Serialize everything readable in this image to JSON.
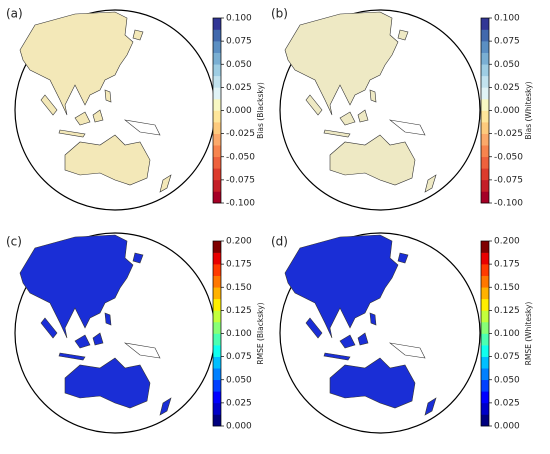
{
  "panels": [
    {
      "label": "(a)",
      "colorbar": {
        "label": "Bias (Blacksky)",
        "lim": [
          -0.1,
          0.1
        ],
        "ticks": [
          {
            "value": -0.1,
            "label": "-0.100"
          },
          {
            "value": -0.075,
            "label": "-0.075"
          },
          {
            "value": -0.05,
            "label": "-0.050"
          },
          {
            "value": -0.025,
            "label": "-0.025"
          },
          {
            "value": 0,
            "label": "0.000"
          },
          {
            "value": 0.025,
            "label": "0.025"
          },
          {
            "value": 0.05,
            "label": "0.050"
          },
          {
            "value": 0.075,
            "label": "0.075"
          },
          {
            "value": 0.1,
            "label": "0.100"
          }
        ],
        "colors": [
          "#a50026",
          "#c41e27",
          "#dc3b2c",
          "#ee613d",
          "#f7844e",
          "#fba96a",
          "#fdca7d",
          "#fee69a",
          "#f8f8c3",
          "#e0f3f6",
          "#c2e3ef",
          "#9ecde3",
          "#7aafd3",
          "#5b8fc3",
          "#4169ad",
          "#313695"
        ]
      },
      "land_color": "#f3e8b8"
    },
    {
      "label": "(b)",
      "colorbar": {
        "label": "Bias (Whitesky)",
        "lim": [
          -0.1,
          0.1
        ],
        "ticks": [
          {
            "value": -0.1,
            "label": "-0.100"
          },
          {
            "value": -0.075,
            "label": "-0.075"
          },
          {
            "value": -0.05,
            "label": "-0.050"
          },
          {
            "value": -0.025,
            "label": "-0.025"
          },
          {
            "value": 0,
            "label": "0.000"
          },
          {
            "value": 0.025,
            "label": "0.025"
          },
          {
            "value": 0.05,
            "label": "0.050"
          },
          {
            "value": 0.075,
            "label": "0.075"
          },
          {
            "value": 0.1,
            "label": "0.100"
          }
        ],
        "colors": [
          "#a50026",
          "#c41e27",
          "#dc3b2c",
          "#ee613d",
          "#f7844e",
          "#fba96a",
          "#fdca7d",
          "#fee69a",
          "#f8f8c3",
          "#e0f3f6",
          "#c2e3ef",
          "#9ecde3",
          "#7aafd3",
          "#5b8fc3",
          "#4169ad",
          "#313695"
        ]
      },
      "land_color": "#eee9c4"
    },
    {
      "label": "(c)",
      "colorbar": {
        "label": "RMSE (Blacksky)",
        "lim": [
          0,
          0.2
        ],
        "ticks": [
          {
            "value": 0,
            "label": "0.000"
          },
          {
            "value": 0.025,
            "label": "0.025"
          },
          {
            "value": 0.05,
            "label": "0.050"
          },
          {
            "value": 0.075,
            "label": "0.075"
          },
          {
            "value": 0.1,
            "label": "0.100"
          },
          {
            "value": 0.125,
            "label": "0.125"
          },
          {
            "value": 0.15,
            "label": "0.150"
          },
          {
            "value": 0.175,
            "label": "0.175"
          },
          {
            "value": 0.2,
            "label": "0.200"
          }
        ],
        "colors": [
          "#00007f",
          "#0000c8",
          "#0000ff",
          "#0040ff",
          "#0080ff",
          "#00bfff",
          "#10ffef",
          "#4cffb2",
          "#87ff77",
          "#c3ff3b",
          "#ffef00",
          "#ffb200",
          "#ff7700",
          "#ff3b00",
          "#e80000",
          "#7f0000"
        ]
      },
      "land_color": "#1a2ed6"
    },
    {
      "label": "(d)",
      "colorbar": {
        "label": "RMSE (Whitesky)",
        "lim": [
          0,
          0.2
        ],
        "ticks": [
          {
            "value": 0,
            "label": "0.000"
          },
          {
            "value": 0.025,
            "label": "0.025"
          },
          {
            "value": 0.05,
            "label": "0.050"
          },
          {
            "value": 0.075,
            "label": "0.075"
          },
          {
            "value": 0.1,
            "label": "0.100"
          },
          {
            "value": 0.125,
            "label": "0.125"
          },
          {
            "value": 0.15,
            "label": "0.150"
          },
          {
            "value": 0.175,
            "label": "0.175"
          },
          {
            "value": 0.2,
            "label": "0.200"
          }
        ],
        "colors": [
          "#00007f",
          "#0000c8",
          "#0000ff",
          "#0040ff",
          "#0080ff",
          "#00bfff",
          "#10ffef",
          "#4cffb2",
          "#87ff77",
          "#c3ff3b",
          "#ffef00",
          "#ffb200",
          "#ff7700",
          "#ff3b00",
          "#e80000",
          "#7f0000"
        ]
      },
      "land_color": "#1a2ed6"
    }
  ]
}
